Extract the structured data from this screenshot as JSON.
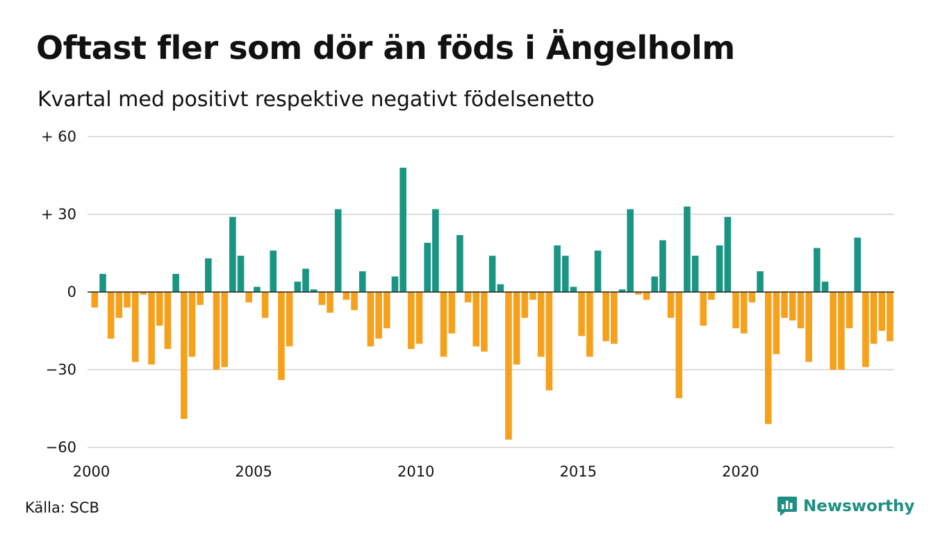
{
  "header": {
    "title": "Oftast fler som dör än föds i Ängelholm",
    "subtitle": "Kvartal med positivt respektive negativt födelsenetto"
  },
  "footer": {
    "source": "Källa: SCB",
    "brand": "Newsworthy"
  },
  "colors": {
    "positive": "#1a9483",
    "negative": "#f5a11c",
    "grid": "#dddddd",
    "zero_line": "#222222",
    "brand": "#1f8f82"
  },
  "icons": {
    "brand_logo": "chat-bar-chart-icon"
  },
  "chart_data": {
    "type": "bar",
    "title": "Oftast fler som dör än föds i Ängelholm",
    "subtitle": "Kvartal med positivt respektive negativt födelsenetto",
    "x_start": 2000.0,
    "x_step": 0.25,
    "x_ticks": [
      2000,
      2005,
      2010,
      2015,
      2020
    ],
    "x_tick_labels": [
      "2000",
      "2005",
      "2010",
      "2015",
      "2020"
    ],
    "ylim": [
      -60,
      60
    ],
    "y_ticks": [
      60,
      30,
      0,
      -30,
      -60
    ],
    "y_tick_labels": [
      "+ 60",
      "+ 30",
      "0",
      "−30",
      "−60"
    ],
    "grid": true,
    "values": [
      -6,
      7,
      -18,
      -10,
      -6,
      -27,
      -1,
      -28,
      -13,
      -22,
      7,
      -49,
      -25,
      -5,
      13,
      -30,
      -29,
      29,
      14,
      -4,
      2,
      -10,
      16,
      -34,
      -21,
      4,
      9,
      1,
      -5,
      -8,
      32,
      -3,
      -7,
      8,
      -21,
      -18,
      -14,
      6,
      48,
      -22,
      -20,
      19,
      32,
      -25,
      -16,
      22,
      -4,
      -21,
      -23,
      14,
      3,
      -57,
      -28,
      -10,
      -3,
      -25,
      -38,
      18,
      14,
      2,
      -17,
      -25,
      16,
      -19,
      -20,
      1,
      32,
      -1,
      -3,
      6,
      20,
      -10,
      -41,
      33,
      14,
      -13,
      -3,
      18,
      29,
      -14,
      -16,
      -4,
      8,
      -51,
      -24,
      -10,
      -11,
      -14,
      -27,
      17,
      4,
      -30,
      -30,
      -14,
      21,
      -29,
      -20,
      -15,
      -19
    ]
  }
}
